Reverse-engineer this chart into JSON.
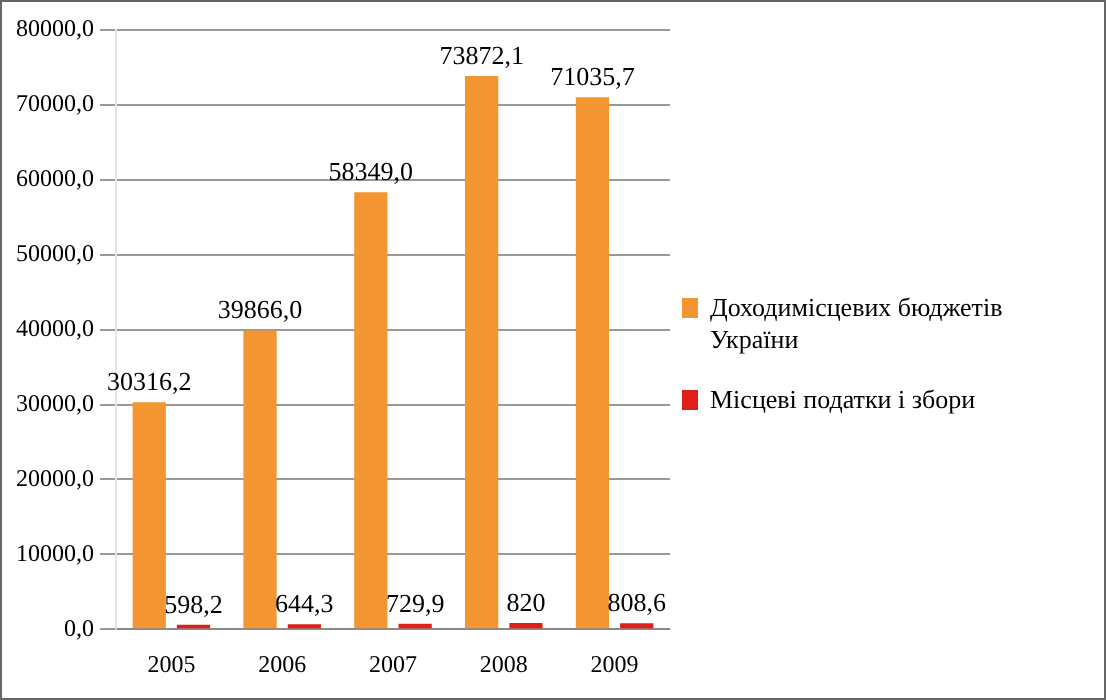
{
  "chart_data": {
    "type": "bar",
    "categories": [
      "2005",
      "2006",
      "2007",
      "2008",
      "2009"
    ],
    "series": [
      {
        "name": "Доходимісцевих бюджетів України",
        "color": "#f39530",
        "values": [
          30316.2,
          39866.0,
          58349.0,
          73872.1,
          71035.7
        ],
        "value_labels": [
          "30316,2",
          "39866,0",
          "58349,0",
          "73872,1",
          "71035,7"
        ]
      },
      {
        "name": "Місцеві податки і збори",
        "color": "#e02018",
        "values": [
          598.2,
          644.3,
          729.9,
          820,
          808.6
        ],
        "value_labels": [
          "598,2",
          "644,3",
          "729,9",
          "820",
          "808,6"
        ]
      }
    ],
    "ylim": [
      0,
      80000
    ],
    "yticks": [
      {
        "value": 0,
        "label": "0,0"
      },
      {
        "value": 10000,
        "label": "10000,0"
      },
      {
        "value": 20000,
        "label": "20000,0"
      },
      {
        "value": 30000,
        "label": "30000,0"
      },
      {
        "value": 40000,
        "label": "40000,0"
      },
      {
        "value": 50000,
        "label": "50000,0"
      },
      {
        "value": 60000,
        "label": "60000,0"
      },
      {
        "value": 70000,
        "label": "70000,0"
      },
      {
        "value": 80000,
        "label": "80000,0"
      }
    ],
    "grid": "y",
    "legend": "right"
  }
}
